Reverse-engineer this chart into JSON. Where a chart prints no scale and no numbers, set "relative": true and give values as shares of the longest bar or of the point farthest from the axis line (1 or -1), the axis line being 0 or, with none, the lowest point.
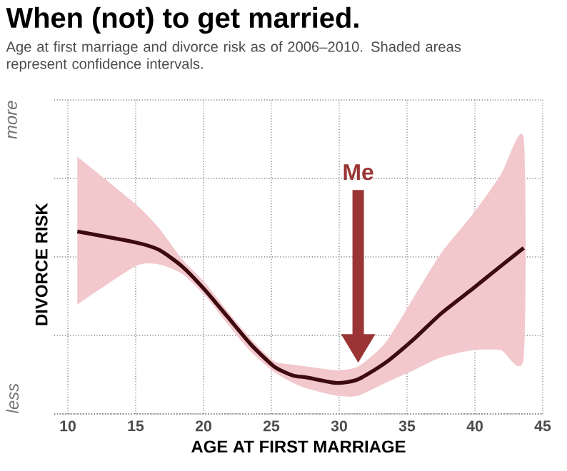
{
  "chart_data": {
    "type": "line",
    "title": "When (not) to get married.",
    "subtitle": "Age at first marriage and divorce risk as of 2006–2010. Shaded areas represent confidence intervals.",
    "xlabel": "AGE AT FIRST MARRIAGE",
    "ylabel": "DIVORCE RISK",
    "relative": true,
    "x": [
      10.7,
      15,
      16.7,
      18.4,
      20.1,
      21.8,
      23.5,
      25.2,
      26.6,
      27.6,
      29.8,
      31.4,
      33.4,
      35.5,
      37.5,
      39.9,
      41.9,
      43.6
    ],
    "series": [
      {
        "color": "#3d0a0f",
        "values": [
          1.0,
          0.94,
          0.9,
          0.81,
          0.68,
          0.53,
          0.38,
          0.26,
          0.21,
          0.2,
          0.17,
          0.19,
          0.28,
          0.41,
          0.55,
          0.69,
          0.81,
          0.91
        ],
        "upper": [
          1.41,
          1.15,
          1.02,
          0.85,
          0.72,
          0.56,
          0.41,
          0.29,
          0.27,
          0.26,
          0.24,
          0.26,
          0.39,
          0.64,
          0.88,
          1.1,
          1.31,
          1.51
        ],
        "lower": [
          0.6,
          0.81,
          0.82,
          0.77,
          0.65,
          0.49,
          0.34,
          0.23,
          0.17,
          0.14,
          0.1,
          0.1,
          0.17,
          0.24,
          0.31,
          0.35,
          0.35,
          0.31
        ]
      }
    ],
    "annotations": [
      "more",
      "less",
      "Me"
    ],
    "xlim": [
      9,
      45
    ],
    "xticks": [
      10,
      15,
      20,
      25,
      30,
      35,
      40,
      45
    ],
    "grid": true
  }
}
